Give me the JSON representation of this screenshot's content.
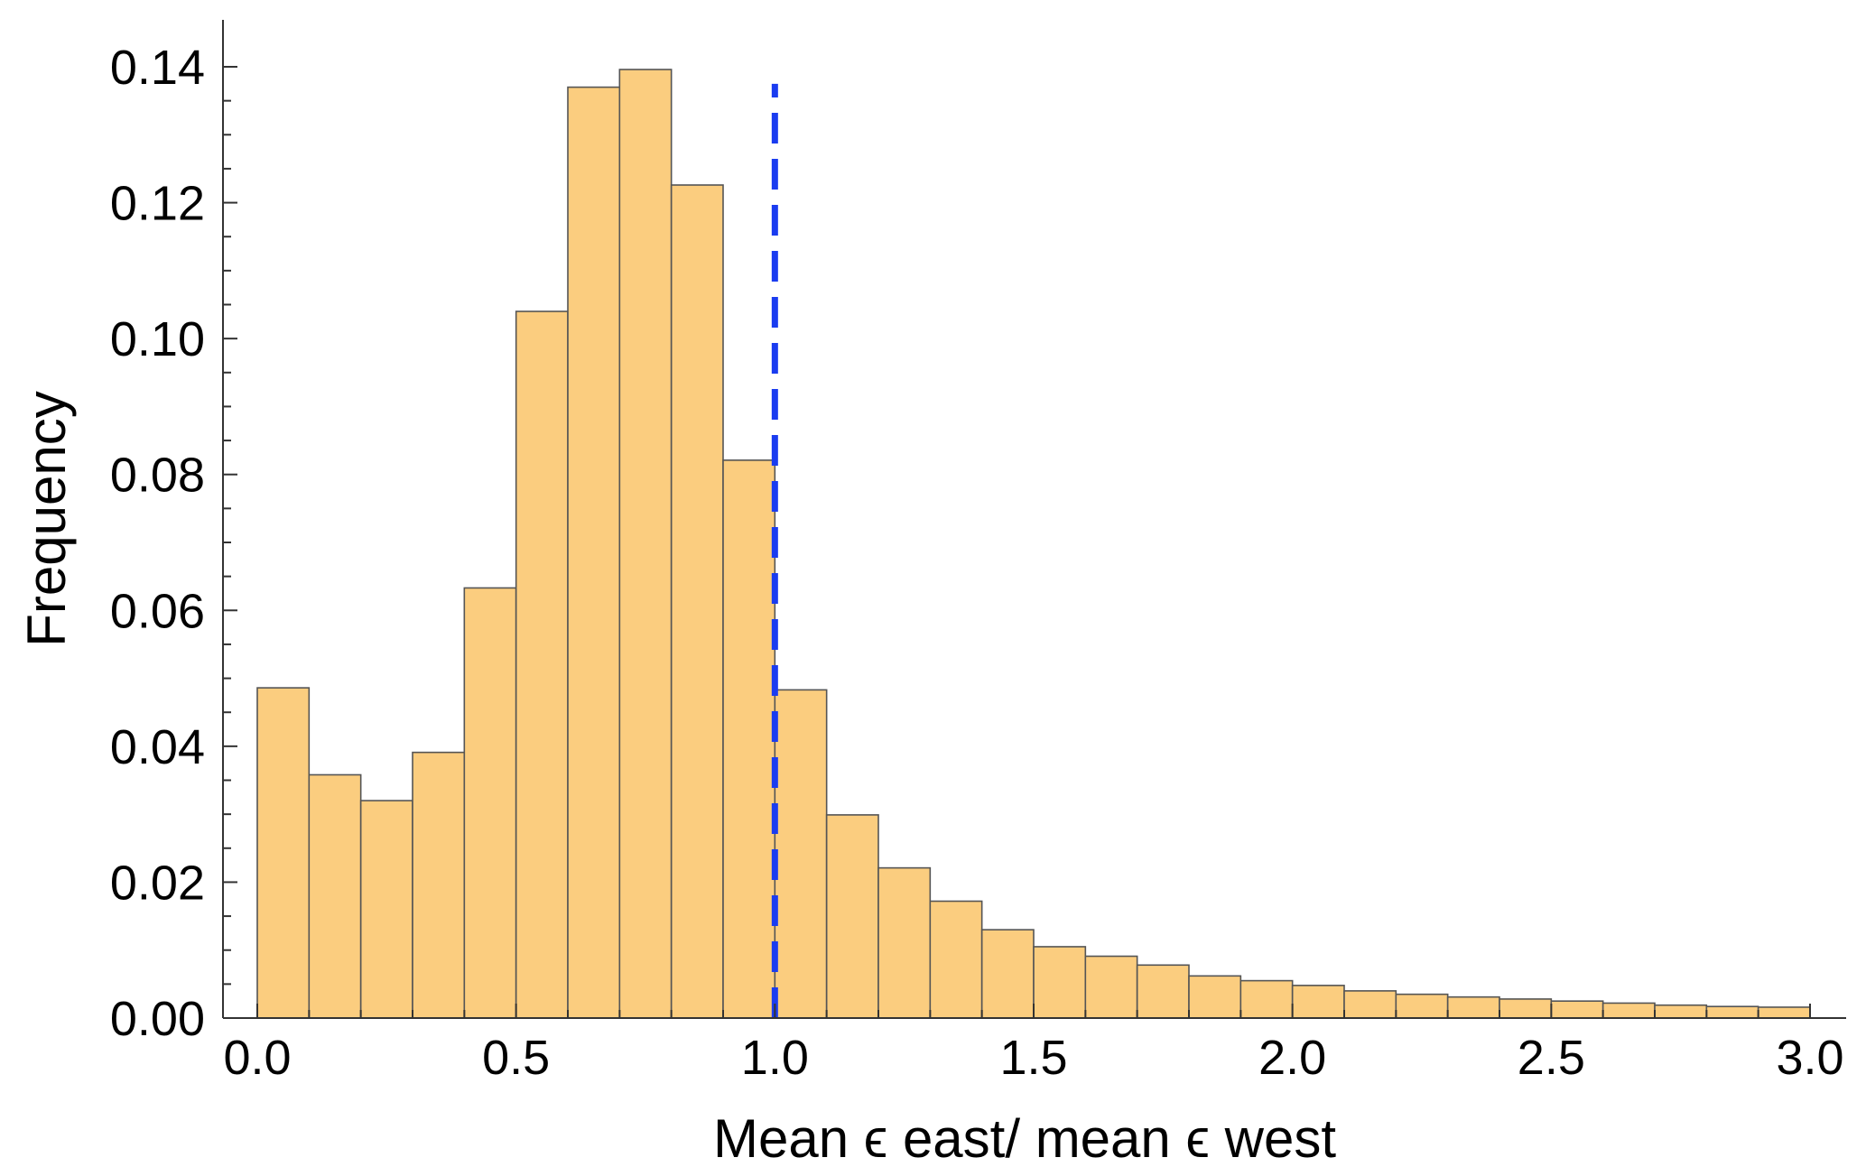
{
  "chart_data": {
    "type": "bar",
    "title": "",
    "xlabel": "Mean ϵ east/ mean  ϵ west",
    "ylabel": "Frequency",
    "xlim": [
      0.0,
      3.0
    ],
    "ylim": [
      0.0,
      0.14
    ],
    "x_ticks": [
      "0.0",
      "0.5",
      "1.0",
      "1.5",
      "2.0",
      "2.5",
      "3.0"
    ],
    "y_ticks": [
      "0.00",
      "0.02",
      "0.04",
      "0.06",
      "0.08",
      "0.10",
      "0.12",
      "0.14"
    ],
    "bin_width": 0.1,
    "bin_edges": [
      0.0,
      0.1,
      0.2,
      0.3,
      0.4,
      0.5,
      0.6,
      0.7,
      0.8,
      0.9,
      1.0,
      1.1,
      1.2,
      1.3,
      1.4,
      1.5,
      1.6,
      1.7,
      1.8,
      1.9,
      2.0,
      2.1,
      2.2,
      2.3,
      2.4,
      2.5,
      2.6,
      2.7,
      2.8,
      2.9,
      3.0
    ],
    "values": [
      0.0486,
      0.0358,
      0.032,
      0.0391,
      0.0633,
      0.104,
      0.137,
      0.1396,
      0.1226,
      0.0821,
      0.0483,
      0.0299,
      0.0221,
      0.0172,
      0.013,
      0.0105,
      0.0091,
      0.0078,
      0.0062,
      0.0055,
      0.0048,
      0.004,
      0.0035,
      0.0031,
      0.0028,
      0.0025,
      0.0022,
      0.0019,
      0.0017,
      0.0016
    ],
    "reference_line": {
      "x": 1.0,
      "y_top": 0.1375,
      "style": "dashed",
      "color": "#1a3cf0"
    },
    "grid": false,
    "colors": {
      "bar_fill": "#fbcd7f",
      "bar_edge": "#555555",
      "axis": "#333333"
    }
  }
}
